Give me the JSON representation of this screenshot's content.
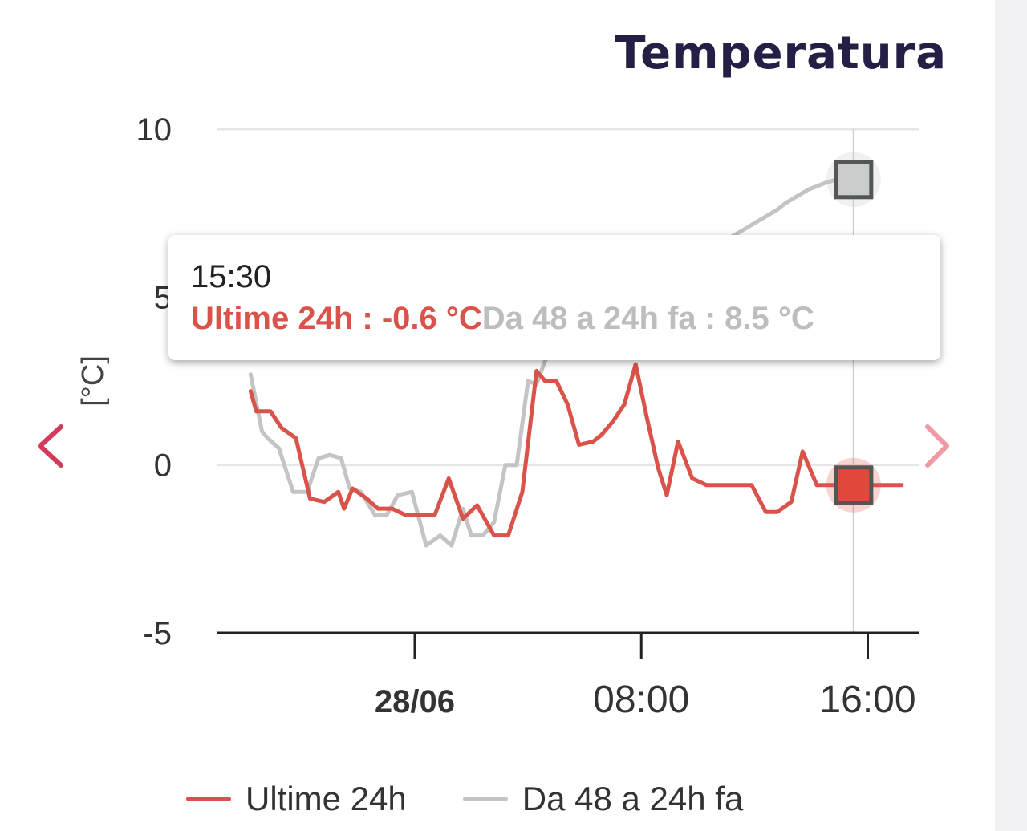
{
  "title": "Temperatura",
  "colors": {
    "series1": "#d9534a",
    "series2": "#c4c4c4",
    "accent": "#d23b5a",
    "title": "#241f45"
  },
  "nav": {
    "prev_icon": "chevron-left-icon",
    "next_icon": "chevron-right-icon"
  },
  "chart_data": {
    "type": "line",
    "title": "Temperatura",
    "ylabel": "[°C]",
    "xlabel": "",
    "ylim": [
      -5,
      10
    ],
    "yticks": [
      "10",
      "5",
      "0",
      "-5"
    ],
    "xticks": [
      {
        "label": "28/06",
        "bold": true,
        "hour": 24
      },
      {
        "label": "08:00",
        "bold": false,
        "hour": 32
      },
      {
        "label": "16:00",
        "bold": false,
        "hour": 40
      }
    ],
    "grid": true,
    "legend_position": "bottom",
    "series": [
      {
        "name": "Ultime 24h",
        "x": [
          18.2,
          18.4,
          18.9,
          19.3,
          19.8,
          20.3,
          20.8,
          21.3,
          21.5,
          21.8,
          22.3,
          22.7,
          23.2,
          23.7,
          24.2,
          24.7,
          25.2,
          25.7,
          26.2,
          26.8,
          27.3,
          27.8,
          28.3,
          28.6,
          29.0,
          29.4,
          29.8,
          30.3,
          30.6,
          31.0,
          31.4,
          31.8,
          32.2,
          32.6,
          32.9,
          33.3,
          33.8,
          34.3,
          34.8,
          35.1,
          35.5,
          35.9,
          36.4,
          36.8,
          37.3,
          37.7,
          38.2,
          38.6,
          39.1,
          39.5,
          40.0,
          40.4,
          40.8,
          41.2
        ],
        "y": [
          2.2,
          1.6,
          1.6,
          1.1,
          0.8,
          -1.0,
          -1.1,
          -0.8,
          -1.3,
          -0.7,
          -1.0,
          -1.3,
          -1.3,
          -1.5,
          -1.5,
          -1.5,
          -0.4,
          -1.6,
          -1.2,
          -2.1,
          -2.1,
          -0.8,
          2.8,
          2.5,
          2.5,
          1.8,
          0.6,
          0.7,
          0.9,
          1.3,
          1.8,
          3.0,
          1.4,
          -0.1,
          -0.9,
          0.7,
          -0.4,
          -0.6,
          -0.6,
          -0.6,
          -0.6,
          -0.6,
          -1.4,
          -1.4,
          -1.1,
          0.4,
          -0.6,
          -0.6,
          -0.6,
          -0.6,
          -0.6,
          -0.6,
          -0.6,
          -0.6
        ]
      },
      {
        "name": "Da 48 a 24h fa",
        "x": [
          18.2,
          18.6,
          18.8,
          19.2,
          19.7,
          20.2,
          20.6,
          21.0,
          21.4,
          21.7,
          22.1,
          22.6,
          23.0,
          23.4,
          23.9,
          24.4,
          24.9,
          25.3,
          25.7,
          26.0,
          26.4,
          26.8,
          27.2,
          27.6,
          28.0,
          28.3,
          28.6,
          29.0,
          29.3,
          29.6,
          29.9,
          30.3,
          30.8,
          31.3,
          31.8,
          32.3,
          32.8,
          33.2,
          33.6,
          34.0,
          34.4,
          34.8,
          35.2,
          35.6,
          36.0,
          36.4,
          36.8,
          37.1,
          37.5,
          37.9,
          38.2,
          38.5,
          38.9,
          39.3,
          39.6
        ],
        "y": [
          2.7,
          1.0,
          0.8,
          0.5,
          -0.8,
          -0.8,
          0.2,
          0.3,
          0.2,
          -0.7,
          -0.8,
          -1.5,
          -1.5,
          -0.9,
          -0.8,
          -2.4,
          -2.1,
          -2.4,
          -1.3,
          -2.1,
          -2.1,
          -1.7,
          0.0,
          0.0,
          2.5,
          2.4,
          3.1,
          3.6,
          3.9,
          4.2,
          4.4,
          4.6,
          4.8,
          5.0,
          5.2,
          5.4,
          5.6,
          5.8,
          6.0,
          6.2,
          6.4,
          6.6,
          6.8,
          7.0,
          7.2,
          7.4,
          7.6,
          7.8,
          8.0,
          8.2,
          8.3,
          8.4,
          8.5,
          8.5,
          8.5
        ]
      }
    ],
    "highlight": {
      "label": "15:30",
      "hour": 39.5,
      "values": [
        -0.6,
        8.5
      ]
    },
    "tooltip": {
      "time": "15:30",
      "line1": "Ultime 24h : -0.6 °C",
      "line2": "Da 48 a 24h fa : 8.5 °C"
    }
  }
}
